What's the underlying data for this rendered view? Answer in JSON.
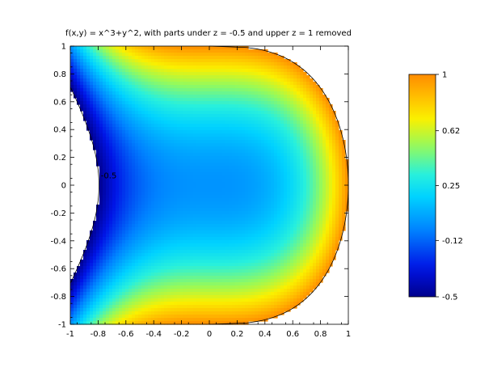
{
  "chart_data": {
    "type": "heatmap",
    "title": "f(x,y) = x^3+y^2, with parts under z = -0.5 and upper z = 1 removed",
    "function": "x^3+y^2",
    "xlim": [
      -1,
      1
    ],
    "ylim": [
      -1,
      1
    ],
    "zlim": [
      -0.5,
      1
    ],
    "x_ticks": [
      "-1",
      "-0.8",
      "-0.6",
      "-0.4",
      "-0.2",
      "0",
      "0.2",
      "0.4",
      "0.6",
      "0.8",
      "1"
    ],
    "y_ticks": [
      "1",
      "0.8",
      "0.6",
      "0.4",
      "0.2",
      "0",
      "-0.2",
      "-0.4",
      "-0.6",
      "-0.8",
      "-1"
    ],
    "annotation": {
      "text": "-0.5",
      "x": -0.78,
      "y": 0.05
    },
    "colorbar": {
      "range": [
        -0.5,
        1
      ],
      "tick_labels": [
        "1",
        "0.62",
        "0.25",
        "-0.12",
        "-0.5"
      ],
      "ticks": [
        1,
        0.62,
        0.25,
        -0.12,
        -0.5
      ]
    },
    "contour_levels": [
      -0.5,
      1
    ],
    "grid": false,
    "colormap": "jet"
  }
}
